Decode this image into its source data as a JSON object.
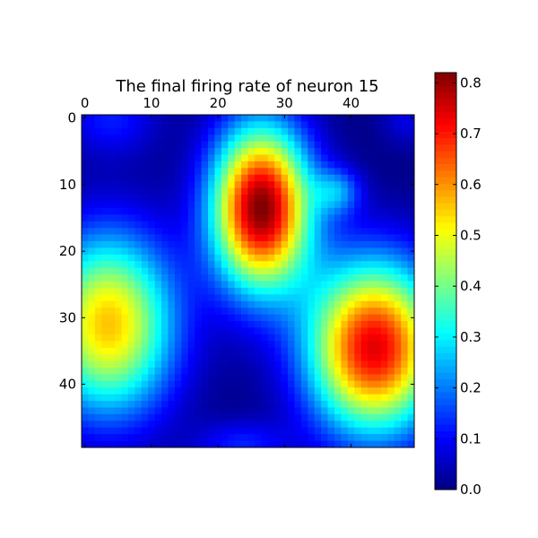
{
  "chart_data": {
    "type": "heatmap",
    "title": "The final firing rate of neuron 15",
    "xlabel": "",
    "ylabel": "",
    "grid": false,
    "x_range": [
      0,
      49
    ],
    "y_range": [
      0,
      49
    ],
    "x_ticks": [
      0,
      10,
      20,
      30,
      40
    ],
    "y_ticks": [
      0,
      10,
      20,
      30,
      40
    ],
    "x_axis_position": "top",
    "colormap": "jet",
    "color_range": [
      0.0,
      0.82
    ],
    "colorbar": {
      "position": "right",
      "ticks": [
        "0.0",
        "0.1",
        "0.2",
        "0.3",
        "0.4",
        "0.5",
        "0.6",
        "0.7",
        "0.8"
      ]
    },
    "blobs": [
      {
        "label": "upper-center peak",
        "cx": 26.5,
        "cy": 13.5,
        "sx": 5.2,
        "sy": 8.6,
        "peak": 0.82
      },
      {
        "label": "lower-right peak",
        "cx": 43.5,
        "cy": 34.5,
        "sx": 7.0,
        "sy": 9.0,
        "peak": 0.74
      },
      {
        "label": "lower-left peak",
        "cx": 3.5,
        "cy": 31.0,
        "sx": 7.0,
        "sy": 9.5,
        "peak": 0.56
      },
      {
        "label": "small right spur",
        "cx": 38.0,
        "cy": 11.0,
        "sx": 2.5,
        "sy": 2.5,
        "peak": 0.18
      },
      {
        "label": "top-left corner",
        "cx": 4.0,
        "cy": 0.0,
        "sx": 5.0,
        "sy": 4.0,
        "peak": 0.12
      },
      {
        "label": "bottom-center patch",
        "cx": 23.5,
        "cy": 49.0,
        "sx": 5.0,
        "sy": 2.5,
        "peak": 0.12
      },
      {
        "label": "top-right corner",
        "cx": 48.5,
        "cy": 0.0,
        "sx": 3.0,
        "sy": 3.0,
        "peak": 0.08
      }
    ]
  }
}
